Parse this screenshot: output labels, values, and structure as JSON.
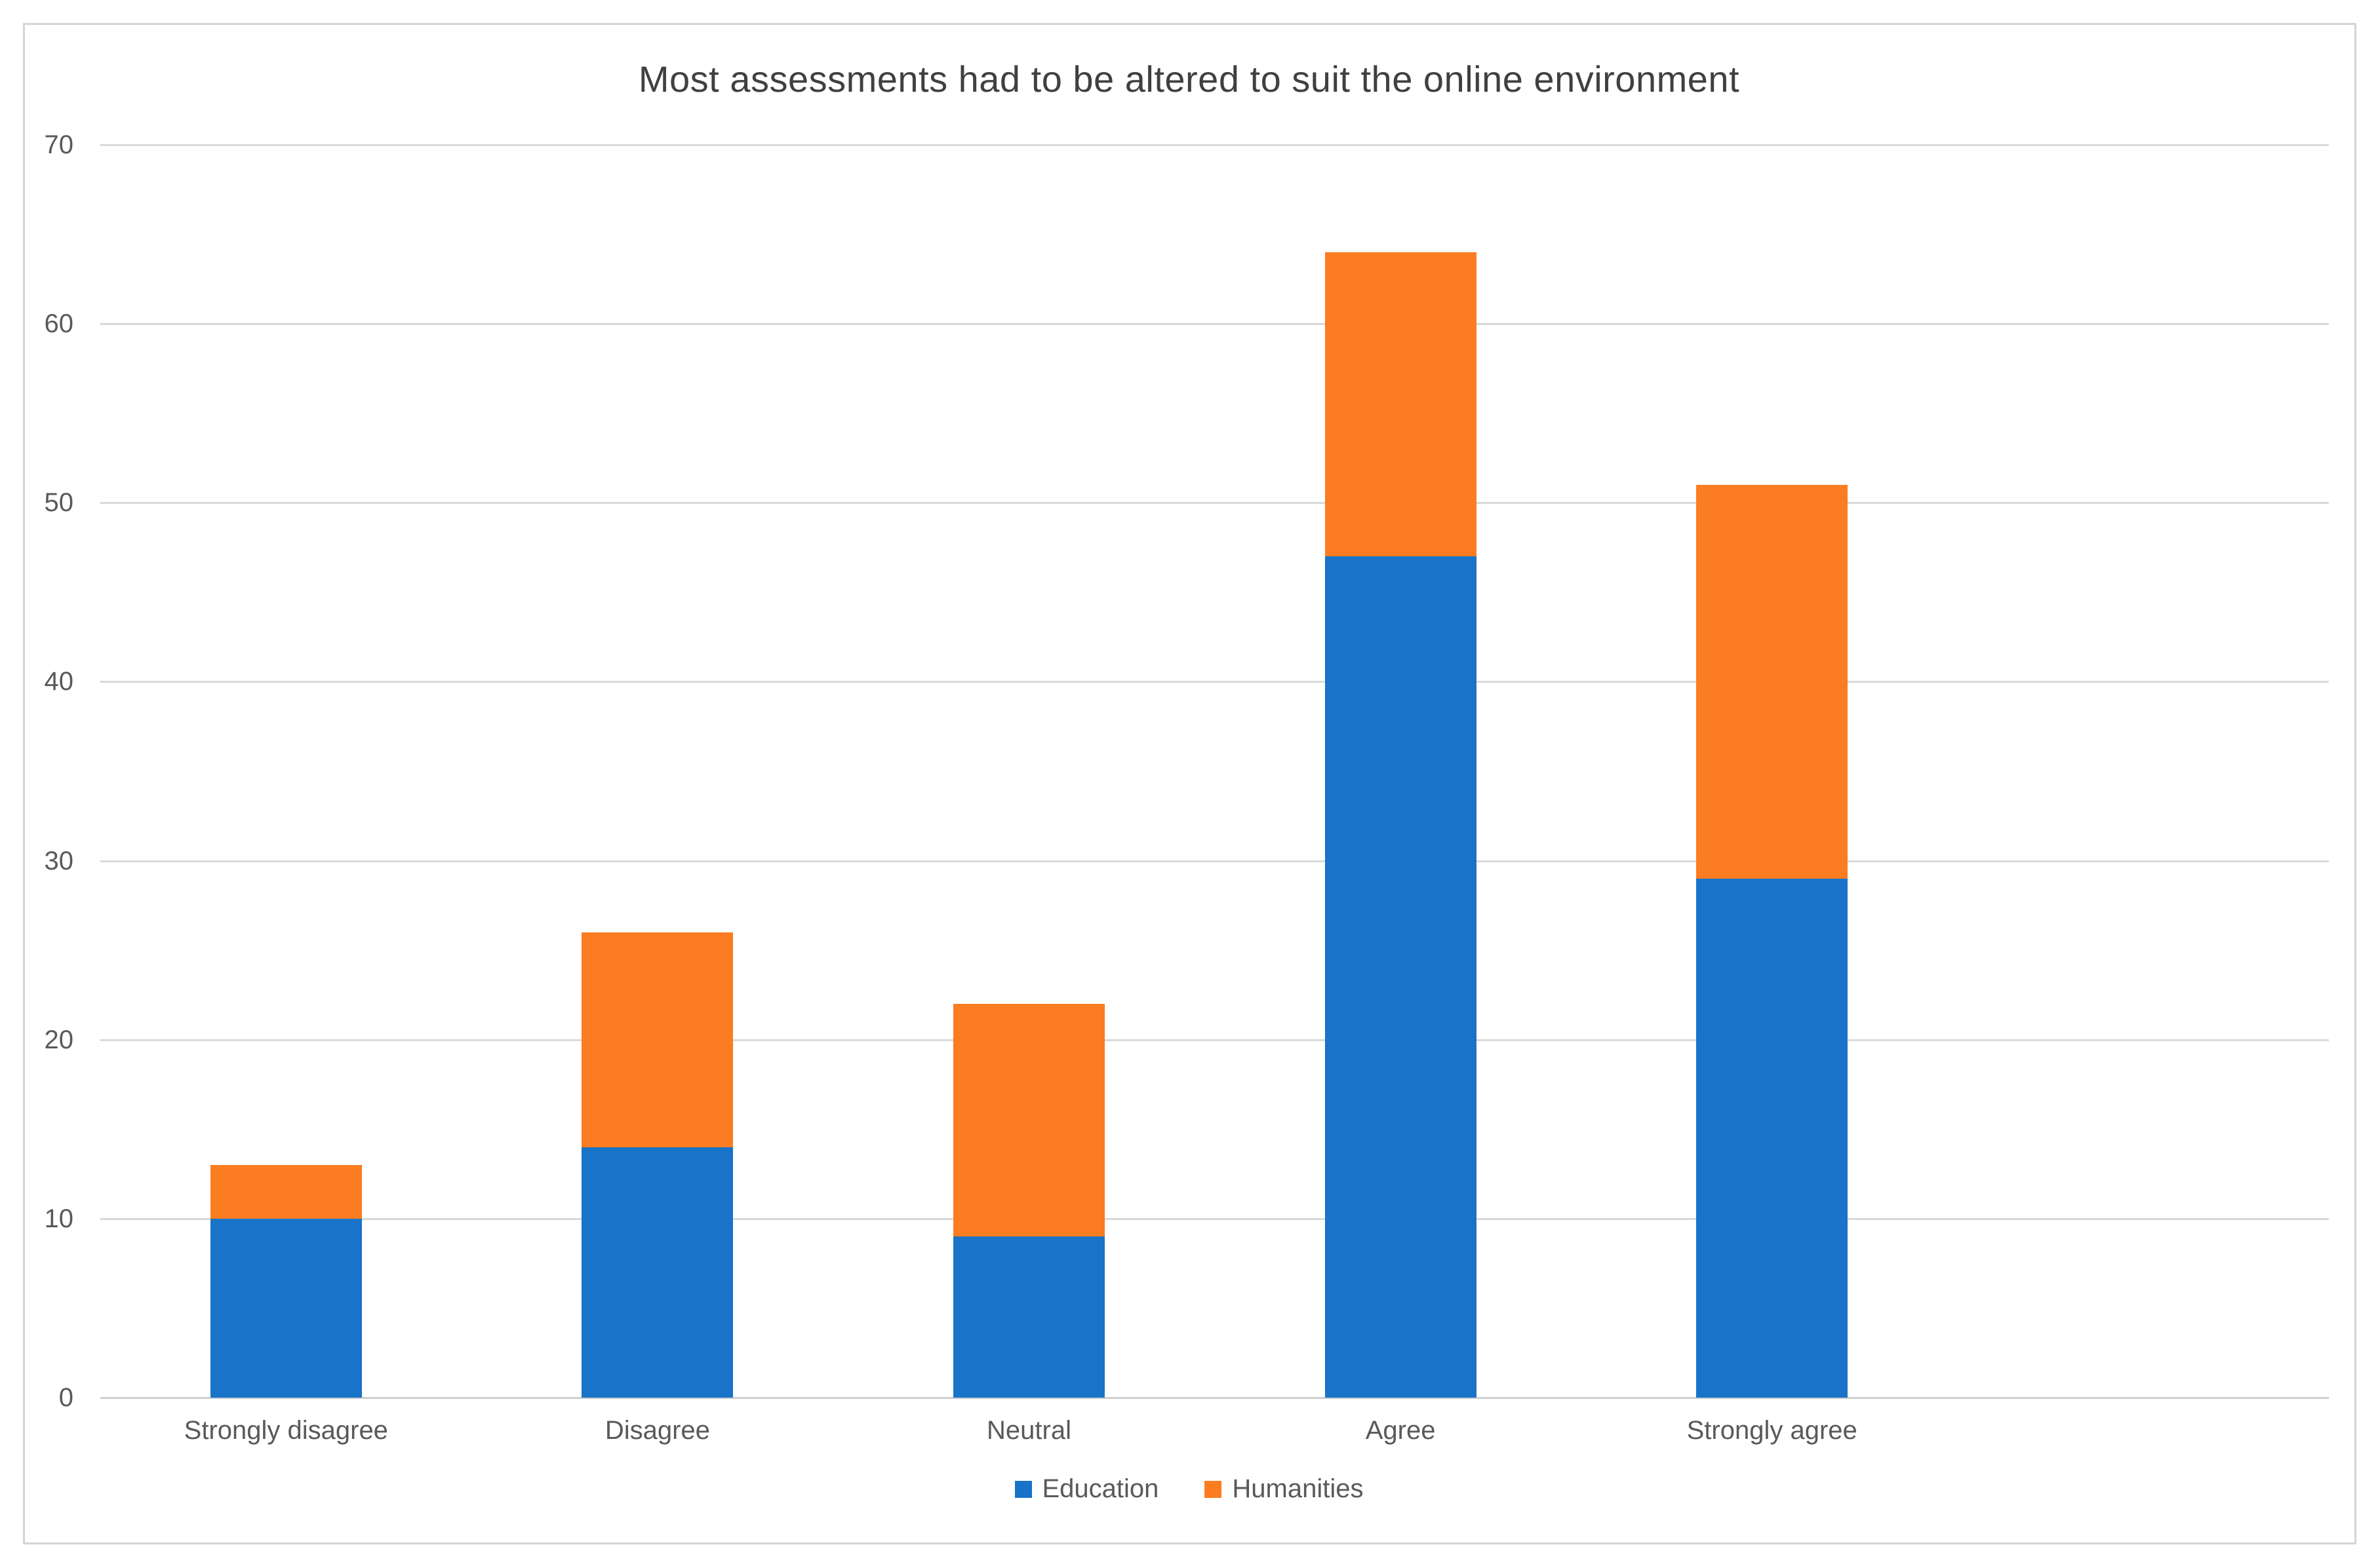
{
  "chart_data": {
    "type": "bar",
    "stacked": true,
    "title": "Most assessments had to be altered to suit the online environment",
    "categories": [
      "Strongly disagree",
      "Disagree",
      "Neutral",
      "Agree",
      "Strongly agree"
    ],
    "series": [
      {
        "name": "Education",
        "color": "#1973C8",
        "values": [
          10,
          14,
          9,
          47,
          29
        ]
      },
      {
        "name": "Humanities",
        "color": "#FB7C21",
        "values": [
          3,
          12,
          13,
          17,
          22
        ]
      }
    ],
    "stack_totals": [
      13,
      26,
      22,
      64,
      51
    ],
    "xlabel": "",
    "ylabel": "",
    "ylim": [
      0,
      70
    ],
    "yticks": [
      0,
      10,
      20,
      30,
      40,
      50,
      60,
      70
    ],
    "grid": true,
    "gridline_color": "#d9d9d9",
    "axis_line_color": "#cfcfcf",
    "tick_label_color": "#595959",
    "title_color": "#404040",
    "legend_position": "bottom",
    "background_color": "#ffffff",
    "border_color": "#d6d4d2"
  }
}
